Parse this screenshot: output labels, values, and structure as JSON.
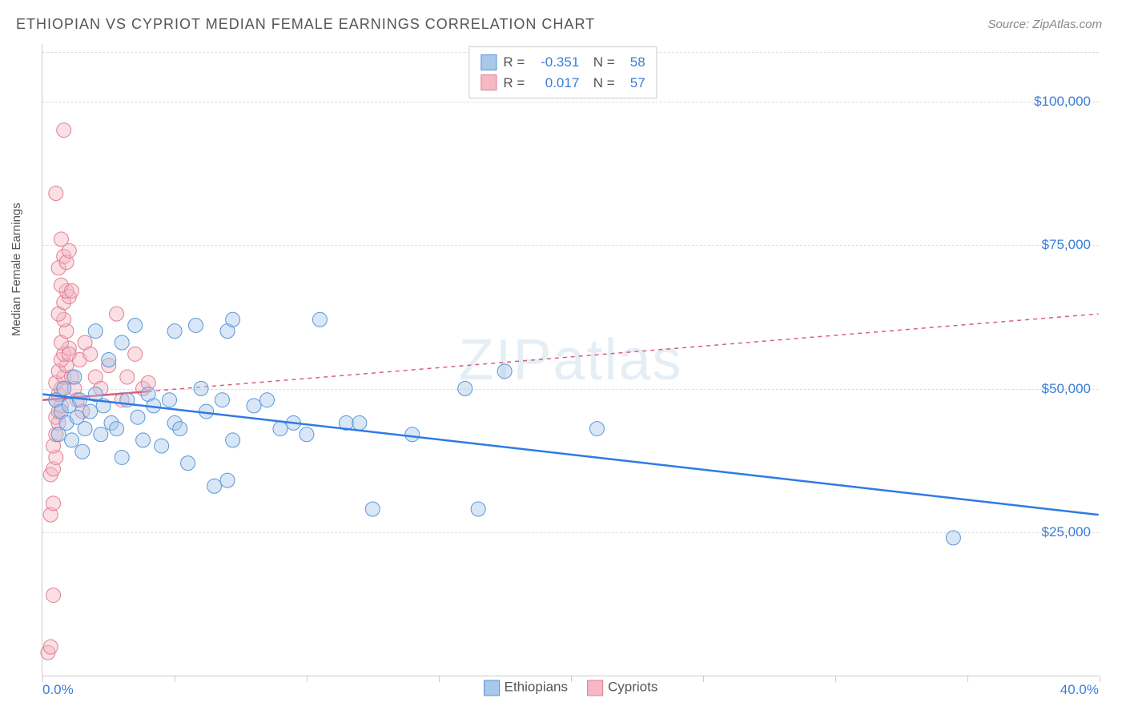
{
  "title": "ETHIOPIAN VS CYPRIOT MEDIAN FEMALE EARNINGS CORRELATION CHART",
  "source": "Source: ZipAtlas.com",
  "watermark": "ZIPatlas",
  "y_axis": {
    "label": "Median Female Earnings"
  },
  "chart": {
    "type": "scatter",
    "background_color": "#ffffff",
    "grid_color": "#dddddd",
    "axis_color": "#cccccc",
    "tick_label_color": "#3b7dd8",
    "xlim": [
      0,
      40
    ],
    "ylim": [
      0,
      110000
    ],
    "x_ticks": [
      0,
      5,
      10,
      15,
      20,
      25,
      30,
      35,
      40
    ],
    "x_tick_labels": {
      "0": "0.0%",
      "40": "40.0%"
    },
    "y_grid": [
      25000,
      50000,
      75000,
      100000
    ],
    "y_tick_labels": {
      "25000": "$25,000",
      "50000": "$50,000",
      "75000": "$75,000",
      "100000": "$100,000"
    },
    "marker_radius": 9,
    "marker_opacity": 0.45,
    "line_width": 2.5,
    "series": [
      {
        "name": "Ethiopians",
        "color_fill": "#a8c8ec",
        "color_stroke": "#5a96d8",
        "trend_color": "#2f7ae5",
        "trend_dash": "none",
        "trend": {
          "x1": 0,
          "y1": 49000,
          "x2": 40,
          "y2": 28000
        },
        "solid_trend_until_x": 40,
        "R": "-0.351",
        "N": "58",
        "points": [
          [
            0.5,
            48000
          ],
          [
            0.6,
            42000
          ],
          [
            0.7,
            46000
          ],
          [
            0.8,
            50000
          ],
          [
            0.9,
            44000
          ],
          [
            1.0,
            47000
          ],
          [
            1.1,
            41000
          ],
          [
            1.2,
            52000
          ],
          [
            1.3,
            45000
          ],
          [
            1.4,
            48000
          ],
          [
            1.5,
            39000
          ],
          [
            1.6,
            43000
          ],
          [
            1.8,
            46000
          ],
          [
            2.0,
            49000
          ],
          [
            2.0,
            60000
          ],
          [
            2.2,
            42000
          ],
          [
            2.3,
            47000
          ],
          [
            2.5,
            55000
          ],
          [
            2.6,
            44000
          ],
          [
            2.8,
            43000
          ],
          [
            3.0,
            38000
          ],
          [
            3.0,
            58000
          ],
          [
            3.2,
            48000
          ],
          [
            3.5,
            61000
          ],
          [
            3.6,
            45000
          ],
          [
            3.8,
            41000
          ],
          [
            4.0,
            49000
          ],
          [
            4.2,
            47000
          ],
          [
            4.5,
            40000
          ],
          [
            4.8,
            48000
          ],
          [
            5.0,
            44000
          ],
          [
            5.0,
            60000
          ],
          [
            5.2,
            43000
          ],
          [
            5.5,
            37000
          ],
          [
            5.8,
            61000
          ],
          [
            6.0,
            50000
          ],
          [
            6.2,
            46000
          ],
          [
            6.5,
            33000
          ],
          [
            6.8,
            48000
          ],
          [
            7.0,
            60000
          ],
          [
            7.2,
            41000
          ],
          [
            7.2,
            62000
          ],
          [
            7.0,
            34000
          ],
          [
            8.0,
            47000
          ],
          [
            8.5,
            48000
          ],
          [
            9.0,
            43000
          ],
          [
            9.5,
            44000
          ],
          [
            10.0,
            42000
          ],
          [
            10.5,
            62000
          ],
          [
            11.5,
            44000
          ],
          [
            12.0,
            44000
          ],
          [
            12.5,
            29000
          ],
          [
            14.0,
            42000
          ],
          [
            16.0,
            50000
          ],
          [
            16.5,
            29000
          ],
          [
            17.5,
            53000
          ],
          [
            21.0,
            43000
          ],
          [
            34.5,
            24000
          ]
        ]
      },
      {
        "name": "Cypriots",
        "color_fill": "#f5b8c4",
        "color_stroke": "#e07f93",
        "trend_color": "#d85f7a",
        "trend_dash": "5,5",
        "trend": {
          "x1": 0,
          "y1": 48000,
          "x2": 40,
          "y2": 63000
        },
        "solid_trend_until_x": 4.0,
        "R": "0.017",
        "N": "57",
        "points": [
          [
            0.2,
            4000
          ],
          [
            0.3,
            5000
          ],
          [
            0.4,
            14000
          ],
          [
            0.3,
            28000
          ],
          [
            0.4,
            30000
          ],
          [
            0.3,
            35000
          ],
          [
            0.4,
            36000
          ],
          [
            0.5,
            38000
          ],
          [
            0.4,
            40000
          ],
          [
            0.5,
            42000
          ],
          [
            0.6,
            44000
          ],
          [
            0.5,
            45000
          ],
          [
            0.6,
            46000
          ],
          [
            0.7,
            47000
          ],
          [
            0.5,
            48000
          ],
          [
            0.6,
            49000
          ],
          [
            0.7,
            50000
          ],
          [
            0.5,
            51000
          ],
          [
            0.8,
            52000
          ],
          [
            0.6,
            53000
          ],
          [
            0.9,
            54000
          ],
          [
            0.7,
            55000
          ],
          [
            0.8,
            56000
          ],
          [
            1.0,
            57000
          ],
          [
            0.7,
            58000
          ],
          [
            0.9,
            60000
          ],
          [
            0.8,
            62000
          ],
          [
            1.0,
            56000
          ],
          [
            1.1,
            52000
          ],
          [
            0.6,
            63000
          ],
          [
            0.8,
            65000
          ],
          [
            1.0,
            66000
          ],
          [
            0.9,
            67000
          ],
          [
            0.7,
            68000
          ],
          [
            1.1,
            67000
          ],
          [
            0.6,
            71000
          ],
          [
            0.8,
            73000
          ],
          [
            0.9,
            72000
          ],
          [
            1.0,
            74000
          ],
          [
            0.7,
            76000
          ],
          [
            0.5,
            84000
          ],
          [
            0.8,
            95000
          ],
          [
            1.2,
            50000
          ],
          [
            1.3,
            48000
          ],
          [
            1.5,
            46000
          ],
          [
            1.4,
            55000
          ],
          [
            1.6,
            58000
          ],
          [
            1.8,
            56000
          ],
          [
            2.0,
            52000
          ],
          [
            2.2,
            50000
          ],
          [
            2.5,
            54000
          ],
          [
            2.8,
            63000
          ],
          [
            3.0,
            48000
          ],
          [
            3.2,
            52000
          ],
          [
            3.5,
            56000
          ],
          [
            3.8,
            50000
          ],
          [
            4.0,
            51000
          ]
        ]
      }
    ]
  }
}
